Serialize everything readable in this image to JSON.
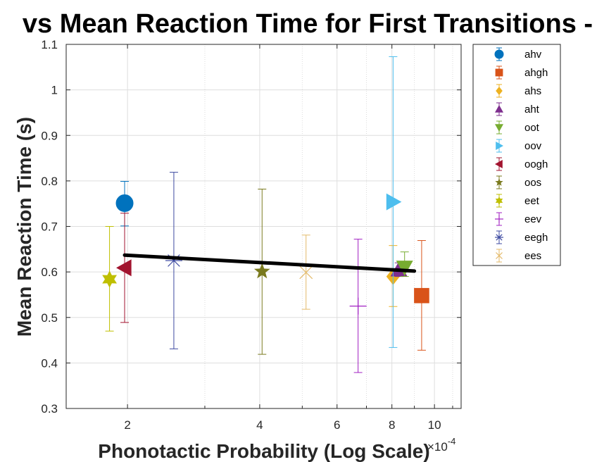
{
  "chart_data": {
    "type": "scatter",
    "title": "vs Mean Reaction Time for First Transitions -",
    "xlabel": "Phonotactic Probability (Log Scale)",
    "ylabel": "Mean Reaction Time (s)",
    "x_scale": "log",
    "x_exponent_label": "×10",
    "x_exponent_power": "-4",
    "xlim": [
      1.45,
      11.5
    ],
    "ylim": [
      0.3,
      1.1
    ],
    "x_ticks": [
      2,
      4,
      6,
      8,
      10
    ],
    "x_tick_labels": [
      "2",
      "4",
      "6",
      "8",
      "10"
    ],
    "y_ticks": [
      0.3,
      0.4,
      0.5,
      0.6,
      0.7,
      0.8,
      0.9,
      1.0,
      1.1
    ],
    "y_tick_labels": [
      "0.3",
      "0.4",
      "0.5",
      "0.6",
      "0.7",
      "0.8",
      "0.9",
      "1",
      "1.1"
    ],
    "grid": true,
    "legend_position": "outside-right",
    "series": [
      {
        "name": "ahv",
        "marker": "circle",
        "color": "#0072BD",
        "x": 1.97,
        "y": 0.751,
        "err_low": 0.701,
        "err_high": 0.799
      },
      {
        "name": "ahgh",
        "marker": "square",
        "color": "#D95319",
        "x": 9.35,
        "y": 0.548,
        "err_low": 0.428,
        "err_high": 0.669
      },
      {
        "name": "ahs",
        "marker": "diamond",
        "color": "#EDB120",
        "x": 8.05,
        "y": 0.59,
        "err_low": 0.524,
        "err_high": 0.658
      },
      {
        "name": "aht",
        "marker": "triangle-up",
        "color": "#7E2F8E",
        "x": 8.3,
        "y": 0.605,
        "err_low": 0.59,
        "err_high": 0.62
      },
      {
        "name": "oot",
        "marker": "triangle-down",
        "color": "#77AC30",
        "x": 8.55,
        "y": 0.61,
        "err_low": 0.59,
        "err_high": 0.644
      },
      {
        "name": "oov",
        "marker": "triangle-right",
        "color": "#4DBEEE",
        "x": 8.05,
        "y": 0.754,
        "err_low": 0.434,
        "err_high": 1.073
      },
      {
        "name": "oogh",
        "marker": "triangle-left",
        "color": "#A2142F",
        "x": 1.97,
        "y": 0.609,
        "err_low": 0.489,
        "err_high": 0.729
      },
      {
        "name": "oos",
        "marker": "pentagram",
        "color": "#7A7A1E",
        "x": 4.05,
        "y": 0.601,
        "err_low": 0.419,
        "err_high": 0.782
      },
      {
        "name": "eet",
        "marker": "hexagram",
        "color": "#BFBF00",
        "x": 1.82,
        "y": 0.584,
        "err_low": 0.47,
        "err_high": 0.7
      },
      {
        "name": "eev",
        "marker": "plus",
        "color": "#A121C2",
        "x": 6.7,
        "y": 0.525,
        "err_low": 0.379,
        "err_high": 0.672
      },
      {
        "name": "eegh",
        "marker": "asterisk",
        "color": "#3D4AA1",
        "x": 2.55,
        "y": 0.625,
        "err_low": 0.431,
        "err_high": 0.819
      },
      {
        "name": "ees",
        "marker": "cross",
        "color": "#E3BA6A",
        "x": 5.1,
        "y": 0.599,
        "err_low": 0.518,
        "err_high": 0.681
      }
    ],
    "fit_line": {
      "color": "#000000",
      "x": [
        1.97,
        9.0
      ],
      "y": [
        0.637,
        0.602
      ]
    }
  }
}
